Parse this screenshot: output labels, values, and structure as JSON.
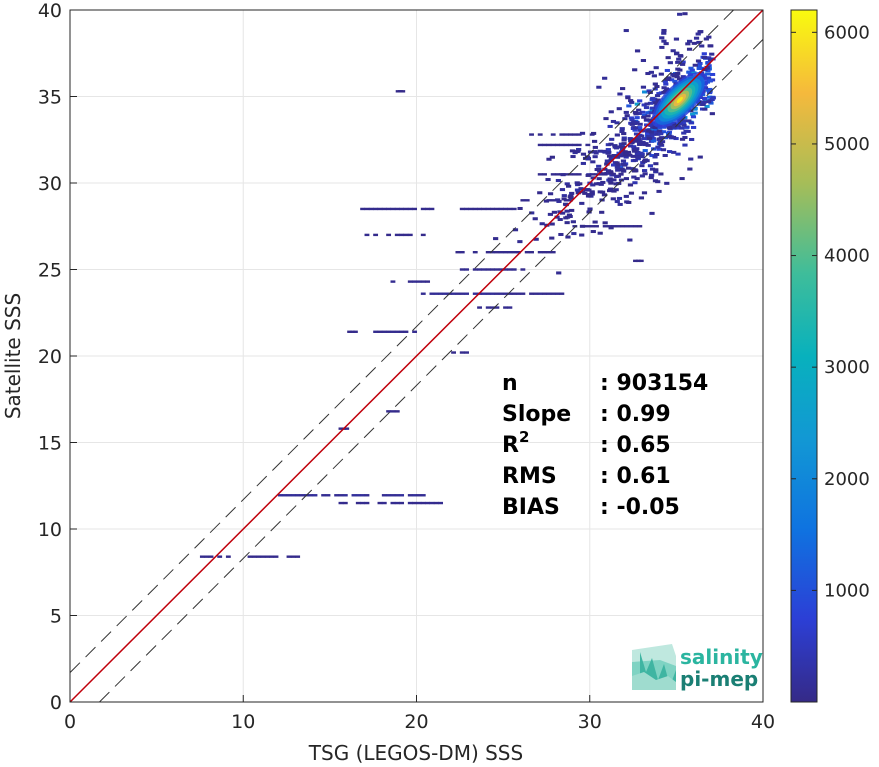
{
  "chart_data": {
    "type": "heatmap",
    "xlabel": "TSG (LEGOS-DM) SSS",
    "ylabel": "Satellite SSS",
    "xlim": [
      0,
      40
    ],
    "ylim": [
      0,
      40
    ],
    "x_ticks": [
      "0",
      "10",
      "20",
      "30",
      "40"
    ],
    "y_ticks": [
      "0",
      "5",
      "10",
      "15",
      "20",
      "25",
      "30",
      "35",
      "40"
    ],
    "grid": true,
    "colorbar": {
      "range": [
        0,
        6200
      ],
      "ticks": [
        "1000",
        "2000",
        "3000",
        "4000",
        "5000",
        "6000"
      ],
      "colormap": "parula"
    },
    "identity_line": {
      "color": "#c0000b",
      "slope": 1,
      "intercept": 0
    },
    "envelope_lines": {
      "color": "#333333",
      "style": "dashed",
      "offset": 1.7
    },
    "density_core": {
      "x": 35.2,
      "y": 34.8,
      "peak_count": 6000
    },
    "density_cloud": [
      {
        "x": 35.0,
        "y": 34.6,
        "count": 2600
      },
      {
        "x": 34.4,
        "y": 34.0,
        "count": 1300
      },
      {
        "x": 36.0,
        "y": 35.8,
        "count": 1100
      },
      {
        "x": 33.5,
        "y": 33.0,
        "count": 500
      },
      {
        "x": 32.0,
        "y": 31.5,
        "count": 250
      },
      {
        "x": 35.5,
        "y": 37.0,
        "count": 180
      },
      {
        "x": 30.5,
        "y": 30.0,
        "count": 120
      }
    ],
    "sparse_segments": [
      {
        "x0": 20.0,
        "x1": 25.0,
        "y": 23.6,
        "count": 120
      },
      {
        "x0": 25.0,
        "x1": 28.5,
        "y": 23.6,
        "count": 70
      },
      {
        "x0": 12.0,
        "x1": 20.5,
        "y": 11.95,
        "count": 150
      },
      {
        "x0": 15.5,
        "x1": 21.5,
        "y": 11.5,
        "count": 60
      },
      {
        "x0": 22.5,
        "x1": 26.5,
        "y": 25.0,
        "count": 60
      },
      {
        "x0": 23.5,
        "x1": 26.5,
        "y": 22.8,
        "count": 60
      },
      {
        "x0": 18.0,
        "x1": 21.0,
        "y": 24.3,
        "count": 60
      },
      {
        "x0": 17.0,
        "x1": 20.5,
        "y": 27.0,
        "count": 50
      },
      {
        "x0": 16.5,
        "x1": 21.0,
        "y": 28.5,
        "count": 50
      },
      {
        "x0": 22.0,
        "x1": 26.0,
        "y": 28.5,
        "count": 50
      },
      {
        "x0": 22.0,
        "x1": 28.0,
        "y": 26.0,
        "count": 50
      },
      {
        "x0": 17.5,
        "x1": 20.5,
        "y": 21.4,
        "count": 60
      },
      {
        "x0": 7.5,
        "x1": 14.0,
        "y": 8.4,
        "count": 40
      },
      {
        "x0": 26.5,
        "x1": 30.5,
        "y": 32.8,
        "count": 70
      },
      {
        "x0": 27.0,
        "x1": 30.0,
        "y": 32.2,
        "count": 60
      },
      {
        "x0": 26.0,
        "x1": 29.0,
        "y": 29.0,
        "count": 60
      },
      {
        "x0": 27.0,
        "x1": 31.0,
        "y": 30.5,
        "count": 60
      },
      {
        "x0": 28.5,
        "x1": 33.0,
        "y": 27.5,
        "count": 60
      },
      {
        "x0": 18.0,
        "x1": 19.0,
        "y": 16.8,
        "count": 40
      },
      {
        "x0": 22.0,
        "x1": 23.0,
        "y": 20.2,
        "count": 40
      },
      {
        "x0": 16.0,
        "x1": 16.5,
        "y": 21.4,
        "count": 30
      },
      {
        "x0": 15.5,
        "x1": 16.0,
        "y": 15.8,
        "count": 30
      },
      {
        "x0": 18.8,
        "x1": 19.2,
        "y": 35.3,
        "count": 30
      },
      {
        "x0": 32.5,
        "x1": 33.0,
        "y": 25.5,
        "count": 30
      }
    ],
    "stats": [
      {
        "label": "n",
        "sup": "",
        "value": ": 903154"
      },
      {
        "label": "Slope",
        "sup": "",
        "value": ": 0.99"
      },
      {
        "label": "R",
        "sup": "2",
        "value": ": 0.65"
      },
      {
        "label": "RMS",
        "sup": "",
        "value": ": 0.61"
      },
      {
        "label": "BIAS",
        "sup": "",
        "value": ": -0.05"
      }
    ]
  },
  "logo": {
    "line1": "salinity",
    "line2": "pi-mep",
    "color_top": "#2bb5a0",
    "color_bottom": "#1a7f74"
  }
}
